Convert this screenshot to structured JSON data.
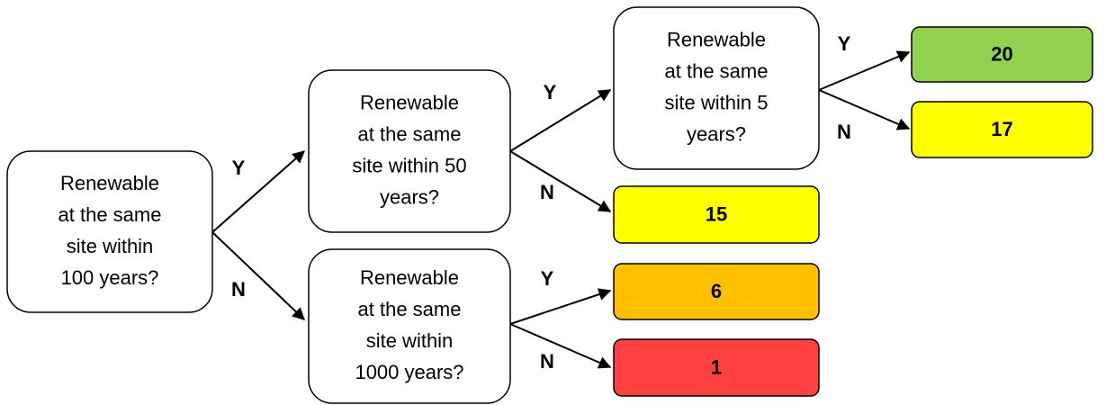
{
  "nodes": [
    {
      "lines": [
        "Renewable",
        "at the same",
        "site within",
        "100 years?"
      ]
    },
    {
      "lines": [
        "Renewable",
        "at the same",
        "site within 50",
        "years?"
      ]
    },
    {
      "lines": [
        "Renewable",
        "at the same",
        "site within",
        "1000 years?"
      ]
    },
    {
      "lines": [
        "Renewable",
        "at the same",
        "site within 5",
        "years?"
      ]
    }
  ],
  "edges": [
    {
      "label": "Y"
    },
    {
      "label": "N"
    },
    {
      "label": "Y"
    },
    {
      "label": "N"
    },
    {
      "label": "Y"
    },
    {
      "label": "N"
    },
    {
      "label": "Y"
    },
    {
      "label": "N"
    }
  ],
  "outcomes": [
    {
      "value": 20,
      "color": "#92d050"
    },
    {
      "value": 17,
      "color": "#ffff00"
    },
    {
      "value": 15,
      "color": "#ffff00"
    },
    {
      "value": 6,
      "color": "#ffc000"
    },
    {
      "value": 1,
      "color": "#ff4040"
    }
  ]
}
